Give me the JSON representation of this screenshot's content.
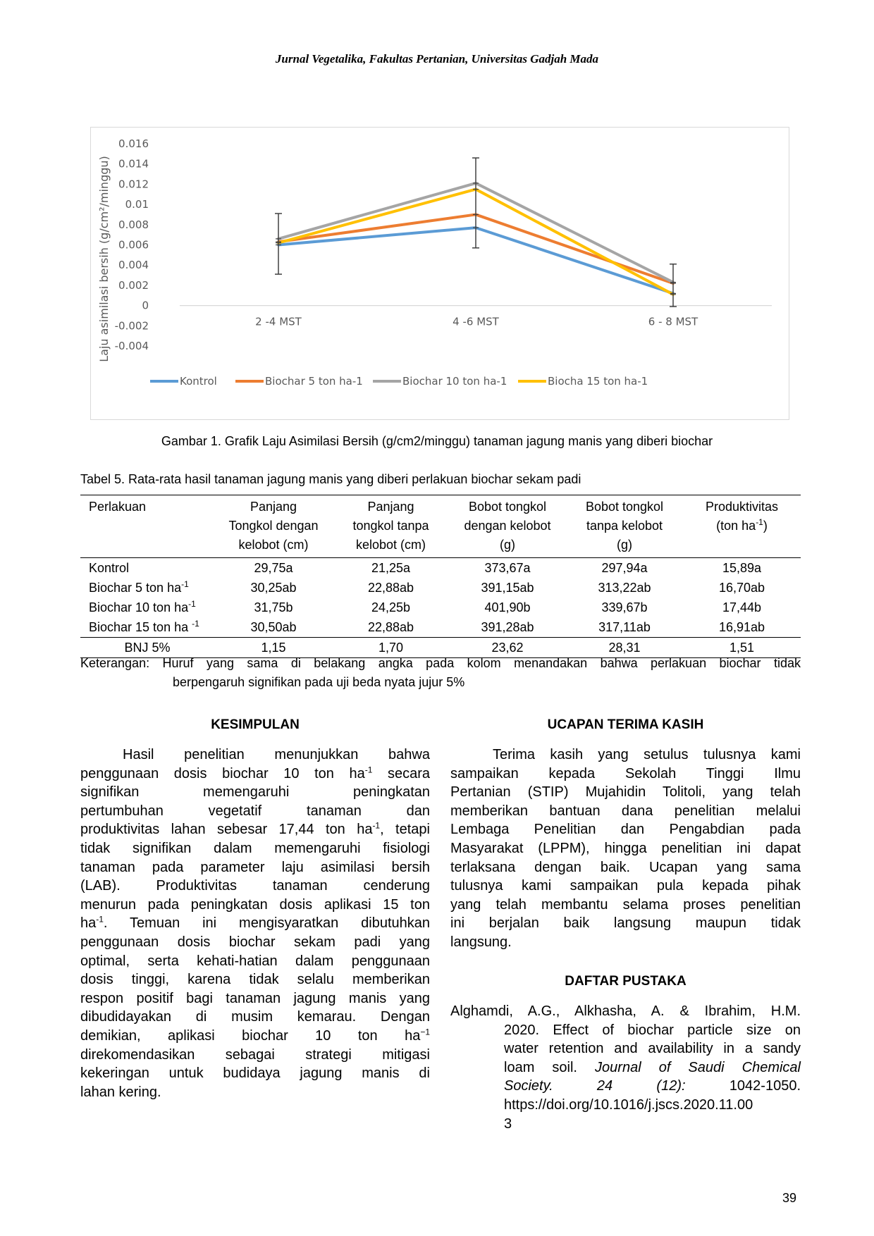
{
  "header": {
    "journal": "Jurnal Vegetalika, Fakultas Pertanian, Universitas Gadjah Mada"
  },
  "chart_data": {
    "type": "line",
    "ylabel": "Laju asimilasi bersih (g/cm²/minggu)",
    "categories": [
      "2 -4 MST",
      "4 -6 MST",
      "6 - 8 MST"
    ],
    "ylim": [
      -0.004,
      0.016
    ],
    "y_ticks": [
      "0.016",
      "0.014",
      "0.012",
      "0.01",
      "0.008",
      "0.006",
      "0.004",
      "0.002",
      "0",
      "-0.002",
      "-0.004"
    ],
    "y_tick_values": [
      0.016,
      0.014,
      0.012,
      0.01,
      0.008,
      0.006,
      0.004,
      0.002,
      0,
      -0.002,
      -0.004
    ],
    "grid": false,
    "legend_position": "bottom",
    "series": [
      {
        "name": "Kontrol",
        "color": "#5b9bd5",
        "values": [
          0.006,
          0.0077,
          0.0012
        ]
      },
      {
        "name": "Biochar 5 ton ha-1",
        "color": "#ed7d31",
        "values": [
          0.0063,
          0.009,
          0.0022
        ]
      },
      {
        "name": "Biochar 10 ton ha-1",
        "color": "#a5a5a5",
        "values": [
          0.0066,
          0.0121,
          0.0023
        ]
      },
      {
        "name": "Biocha 15 ton ha-1",
        "color": "#ffc000",
        "values": [
          0.0062,
          0.0115,
          0.0011
        ]
      }
    ],
    "error_bars": [
      {
        "category": "2 -4 MST",
        "low": 0.0031,
        "high": 0.0091
      },
      {
        "category": "4 -6 MST",
        "low": 0.0057,
        "high": 0.0146
      },
      {
        "category": "6 - 8 MST",
        "low": -0.0001,
        "high": 0.0041
      }
    ]
  },
  "figure": {
    "caption": "Gambar 1. Grafik Laju Asimilasi Bersih (g/cm2/minggu) tanaman jagung manis yang diberi biochar"
  },
  "table": {
    "caption": "Tabel 5. Rata-rata hasil tanaman jagung manis yang diberi perlakuan biochar sekam padi",
    "headers": {
      "perlakuan": "Perlakuan",
      "col1": [
        "Panjang",
        "Tongkol dengan",
        "kelobot (cm)"
      ],
      "col2": [
        "Panjang",
        "tongkol tanpa",
        "kelobot (cm)"
      ],
      "col3": [
        "Bobot tongkol",
        "dengan kelobot",
        "(g)"
      ],
      "col4": [
        "Bobot tongkol",
        "tanpa kelobot",
        "(g)"
      ],
      "col5_a": "Produktivitas",
      "col5_b": "(ton ha",
      "col5_sup": "-1",
      "col5_c": ")"
    },
    "rows": [
      {
        "label": "Kontrol",
        "sup": "",
        "values": [
          "29,75a",
          "21,25a",
          "373,67a",
          "297,94a",
          "15,89a"
        ]
      },
      {
        "label": "Biochar 5 ton ha",
        "sup": "-1",
        "values": [
          "30,25ab",
          "22,88ab",
          "391,15ab",
          "313,22ab",
          "16,70ab"
        ]
      },
      {
        "label": "Biochar 10 ton ha",
        "sup": "-1",
        "values": [
          "31,75b",
          "24,25b",
          "401,90b",
          "339,67b",
          "17,44b"
        ]
      },
      {
        "label": "Biochar 15 ton ha ",
        "sup": "-1",
        "values": [
          "30,50ab",
          "22,88ab",
          "391,28ab",
          "317,11ab",
          "16,91ab"
        ]
      }
    ],
    "bnj": {
      "label": "BNJ 5%",
      "values": [
        "1,15",
        "1,70",
        "23,62",
        "28,31",
        "1,51"
      ]
    },
    "note_line1": "Keterangan: Huruf yang sama di belakang angka pada kolom menandakan bahwa perlakuan biochar tidak",
    "note_line2": "berpengaruh signifikan pada uji beda nyata jujur 5%"
  },
  "kesimpulan": {
    "title": "KESIMPULAN",
    "l1": "Hasil penelitian menunjukkan bahwa",
    "l2a": "penggunaan dosis biochar 10 ton ha",
    "l2sup": "-1",
    "l2b": " secara",
    "l3": "signifikan memengaruhi peningkatan",
    "l4": "pertumbuhan vegetatif tanaman dan",
    "l5a": "produktivitas lahan sebesar 17,44 ton ha",
    "l5sup": "-1",
    "l5b": ", tetapi",
    "l6": "tidak signifikan dalam memengaruhi fisiologi",
    "l7": "tanaman pada parameter laju asimilasi bersih",
    "l8": "(LAB). Produktivitas tanaman cenderung",
    "l9": "menurun pada peningkatan dosis aplikasi 15 ton",
    "l10a": "ha",
    "l10sup": "-1",
    "l10b": ". Temuan ini mengisyaratkan dibutuhkan",
    "l11": "penggunaan dosis biochar sekam padi yang",
    "l12": "optimal, serta kehati-hatian dalam penggunaan",
    "l13": "dosis tinggi, karena tidak selalu memberikan",
    "l14": "respon positif bagi tanaman jagung manis yang",
    "l15": "dibudidayakan di musim kemarau. Dengan",
    "l16a": "demikian, aplikasi biochar 10 ton ha",
    "l16sup": "−1",
    "l17": "direkomendasikan sebagai strategi mitigasi",
    "l18": "kekeringan untuk budidaya jagung manis di",
    "l19": "lahan kering."
  },
  "ucapan": {
    "title": "UCAPAN TERIMA KASIH",
    "l1": "Terima kasih yang setulus tulusnya kami",
    "l2": "sampaikan kepada Sekolah Tinggi Ilmu",
    "l3": "Pertanian (STIP) Mujahidin Tolitoli, yang telah",
    "l4": "memberikan bantuan dana penelitian melalui",
    "l5": "Lembaga Penelitian dan Pengabdian pada",
    "l6": "Masyarakat (LPPM), hingga penelitian ini dapat",
    "l7": "terlaksana dengan baik. Ucapan yang sama",
    "l8": "tulusnya kami sampaikan pula kepada pihak",
    "l9": "yang telah membantu selama proses penelitian",
    "l10": "ini berjalan baik langsung maupun tidak",
    "l11": "langsung."
  },
  "daftar_pustaka": {
    "title": "DAFTAR PUSTAKA",
    "r1_l1": "Alghamdi, A.G., Alkhasha, A. & Ibrahim, H.M.",
    "r1_l2": "2020. Effect of biochar particle size on",
    "r1_l3": "water retention and availability in a sandy",
    "r1_l4": "loam soil.",
    "r1_l4_italic": "Journal of Saudi Chemical",
    "r1_l5_italic": "Society. 24 (12):",
    "r1_l5": "1042-1050.",
    "r1_l6": "https://doi.org/10.1016/j.jscs.2020.11.00",
    "r1_l7": "3"
  },
  "page_number": "39"
}
